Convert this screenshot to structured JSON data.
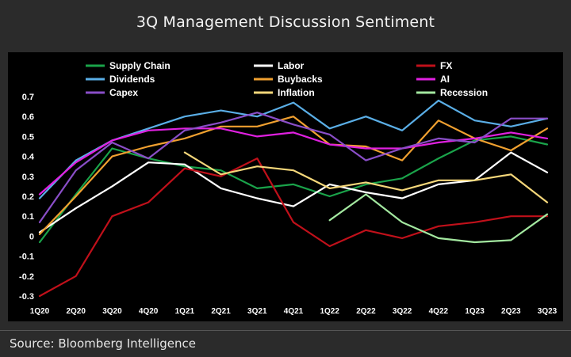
{
  "title": "3Q Management Discussion Sentiment",
  "source": "Source: Bloomberg Intelligence",
  "chart_data": {
    "type": "line",
    "title": "3Q Management Discussion Sentiment",
    "xlabel": "",
    "ylabel": "",
    "ylim": [
      -0.3,
      0.7
    ],
    "yticks": [
      "0.7",
      "0.6",
      "0.5",
      "0.4",
      "0.3",
      "0.2",
      "0.1",
      "0",
      "-0.1",
      "-0.2",
      "-0.3"
    ],
    "categories": [
      "1Q20",
      "2Q20",
      "3Q20",
      "4Q20",
      "1Q21",
      "2Q21",
      "3Q21",
      "4Q21",
      "1Q22",
      "2Q22",
      "3Q22",
      "4Q22",
      "1Q23",
      "2Q23",
      "3Q23"
    ],
    "grid": false,
    "legend_position": "top",
    "series": [
      {
        "name": "Supply Chain",
        "color": "#1aa34a",
        "values": [
          -0.03,
          0.21,
          0.44,
          0.39,
          0.35,
          0.33,
          0.24,
          0.26,
          0.2,
          0.26,
          0.29,
          0.39,
          0.48,
          0.5,
          0.46
        ]
      },
      {
        "name": "Labor",
        "color": "#ffffff",
        "values": [
          0.02,
          0.14,
          0.25,
          0.37,
          0.36,
          0.24,
          0.19,
          0.15,
          0.26,
          0.22,
          0.19,
          0.26,
          0.28,
          0.42,
          0.32
        ]
      },
      {
        "name": "FX",
        "color": "#c0101a",
        "values": [
          -0.3,
          -0.2,
          0.1,
          0.17,
          0.34,
          0.3,
          0.39,
          0.07,
          -0.05,
          0.03,
          -0.01,
          0.05,
          0.07,
          0.1,
          0.1
        ]
      },
      {
        "name": "Dividends",
        "color": "#5aaee6",
        "values": [
          0.19,
          0.38,
          0.48,
          0.54,
          0.6,
          0.63,
          0.6,
          0.67,
          0.54,
          0.6,
          0.53,
          0.68,
          0.58,
          0.55,
          0.59
        ]
      },
      {
        "name": "Buybacks",
        "color": "#f0a030",
        "values": [
          0.01,
          0.2,
          0.4,
          0.45,
          0.49,
          0.55,
          0.55,
          0.6,
          0.46,
          0.45,
          0.38,
          0.58,
          0.49,
          0.43,
          0.54
        ]
      },
      {
        "name": "AI",
        "color": "#e020e0",
        "values": [
          0.21,
          0.37,
          0.48,
          0.53,
          0.54,
          0.54,
          0.5,
          0.52,
          0.46,
          0.44,
          0.44,
          0.47,
          0.49,
          0.52,
          0.49
        ]
      },
      {
        "name": "Capex",
        "color": "#8a4ec8",
        "values": [
          0.07,
          0.33,
          0.47,
          0.39,
          0.53,
          0.57,
          0.62,
          0.56,
          0.51,
          0.38,
          0.44,
          0.49,
          0.47,
          0.59,
          0.59
        ]
      },
      {
        "name": "Inflation",
        "color": "#f5d77a",
        "values": [
          null,
          null,
          null,
          null,
          0.42,
          0.31,
          0.35,
          0.33,
          0.24,
          0.27,
          0.23,
          0.28,
          0.28,
          0.31,
          0.17
        ]
      },
      {
        "name": "Recession",
        "color": "#a3e8a0",
        "values": [
          null,
          null,
          null,
          null,
          null,
          null,
          null,
          null,
          0.08,
          0.21,
          0.07,
          -0.01,
          -0.03,
          -0.02,
          0.11
        ]
      }
    ]
  }
}
